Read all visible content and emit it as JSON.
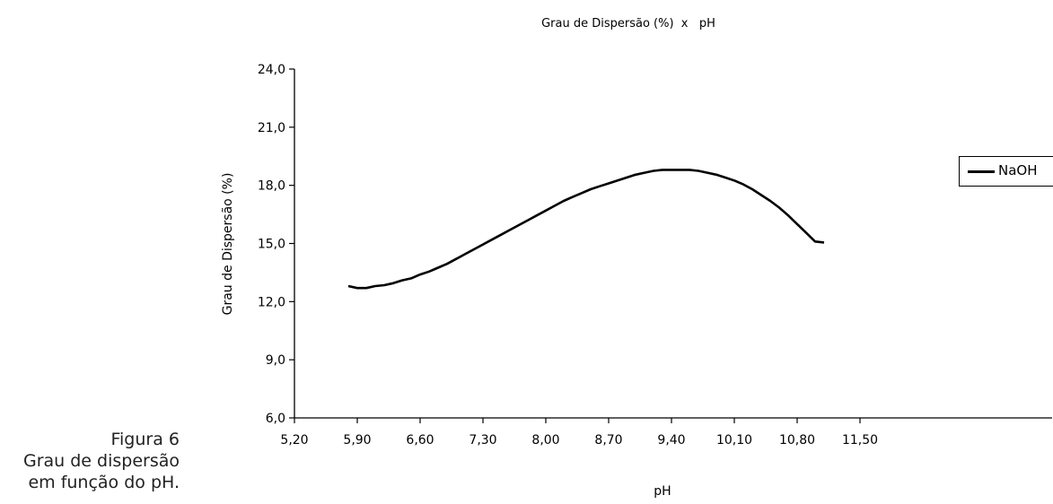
{
  "chart_data": {
    "type": "line",
    "title": "Grau de Dispersão (%)  x   pH",
    "xlabel": "pH",
    "ylabel": "Grau de Dispersão (%)",
    "xlim": [
      5.2,
      11.5
    ],
    "ylim": [
      6.0,
      24.0
    ],
    "x_ticks": [
      "5,20",
      "5,90",
      "6,60",
      "7,30",
      "8,00",
      "8,70",
      "9,40",
      "10,10",
      "10,80",
      "11,50"
    ],
    "y_ticks": [
      "6,0",
      "9,0",
      "12,0",
      "15,0",
      "18,0",
      "21,0",
      "24,0"
    ],
    "grid": false,
    "legend_position": "right",
    "series": [
      {
        "name": "NaOH",
        "color": "#000000",
        "x": [
          5.8,
          5.9,
          6.0,
          6.1,
          6.2,
          6.3,
          6.4,
          6.5,
          6.6,
          6.7,
          6.8,
          6.9,
          7.0,
          7.1,
          7.2,
          7.3,
          7.4,
          7.5,
          7.6,
          7.7,
          7.8,
          7.9,
          8.0,
          8.1,
          8.2,
          8.3,
          8.4,
          8.5,
          8.6,
          8.7,
          8.8,
          8.9,
          9.0,
          9.1,
          9.2,
          9.3,
          9.4,
          9.5,
          9.6,
          9.7,
          9.8,
          9.9,
          10.0,
          10.1,
          10.2,
          10.3,
          10.4,
          10.5,
          10.6,
          10.7,
          10.8,
          10.9,
          11.0,
          11.1
        ],
        "y": [
          12.8,
          12.7,
          12.7,
          12.8,
          12.85,
          12.95,
          13.1,
          13.2,
          13.4,
          13.55,
          13.75,
          13.95,
          14.2,
          14.45,
          14.7,
          14.95,
          15.2,
          15.45,
          15.7,
          15.95,
          16.2,
          16.45,
          16.7,
          16.95,
          17.2,
          17.4,
          17.6,
          17.8,
          17.95,
          18.1,
          18.25,
          18.4,
          18.55,
          18.65,
          18.75,
          18.8,
          18.8,
          18.8,
          18.8,
          18.75,
          18.65,
          18.55,
          18.4,
          18.25,
          18.05,
          17.8,
          17.5,
          17.2,
          16.85,
          16.45,
          16.0,
          15.55,
          15.1,
          15.05
        ]
      }
    ]
  },
  "caption": {
    "line1": "Figura 6",
    "line2": "Grau de dispersão",
    "line3": "em função do pH."
  }
}
